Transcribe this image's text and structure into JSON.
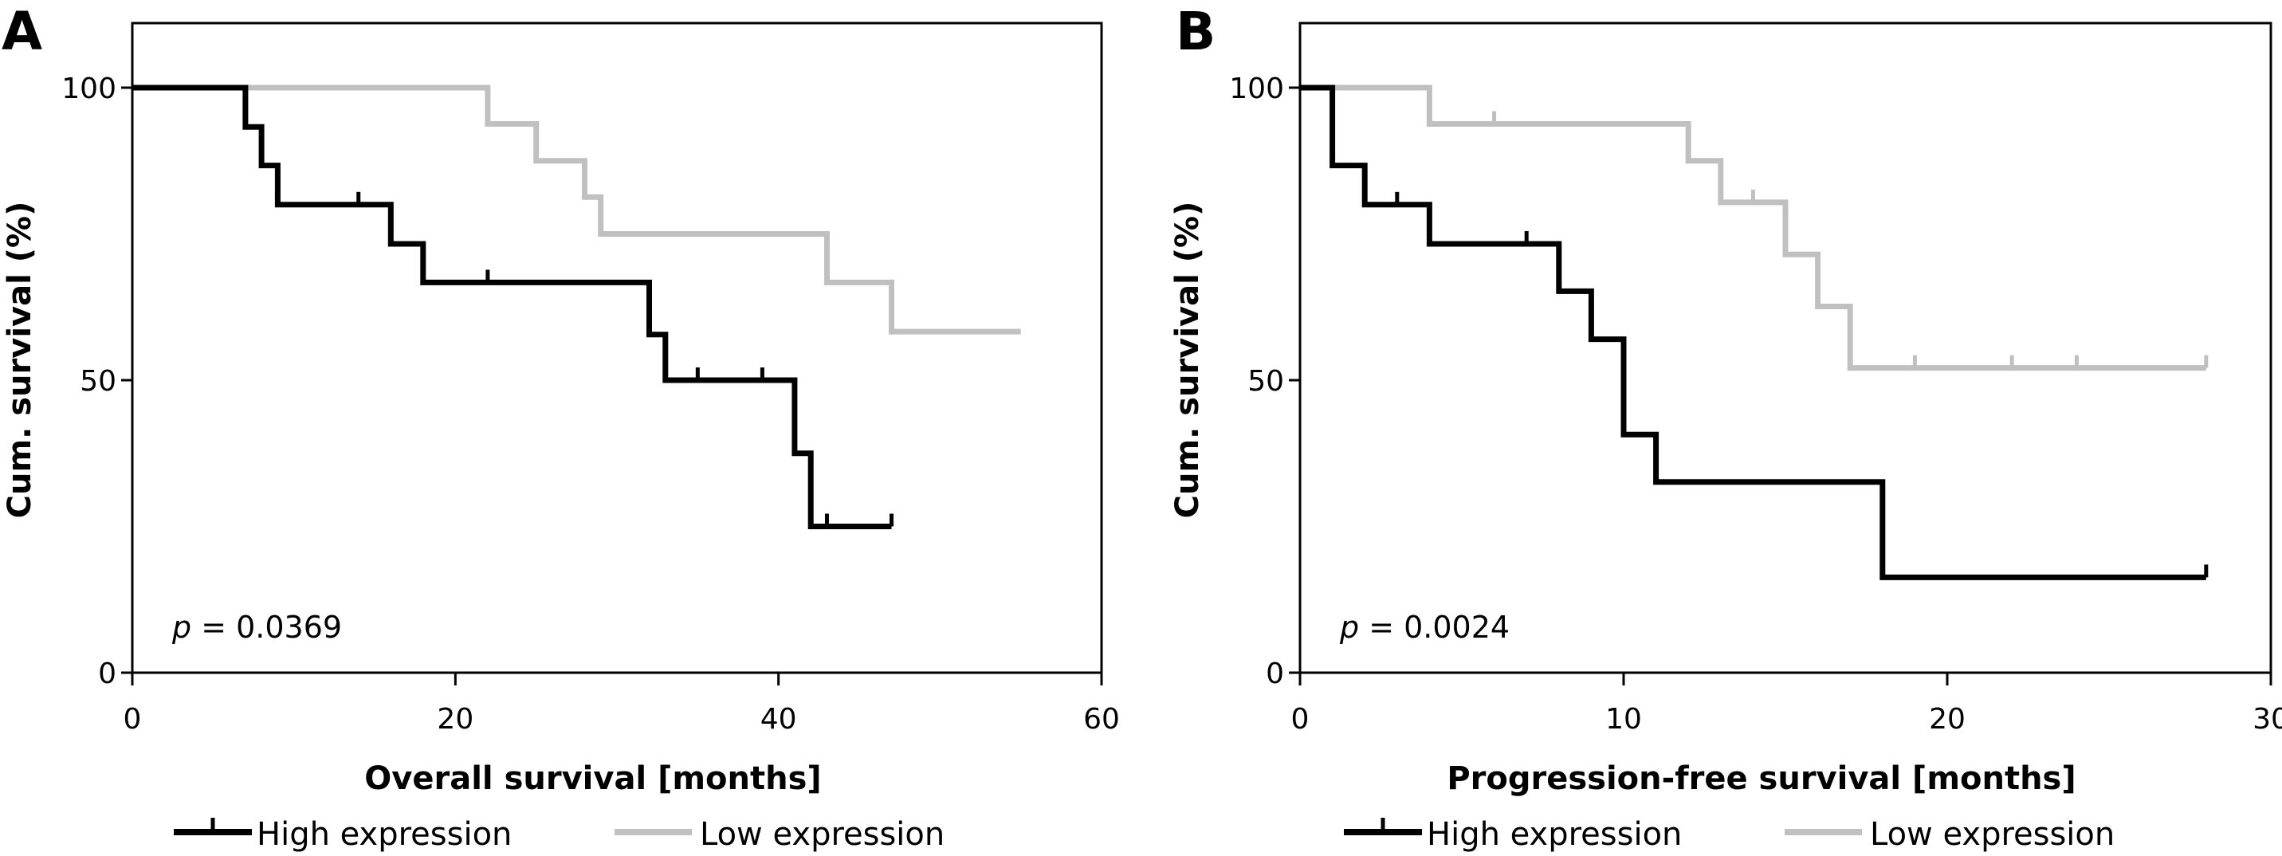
{
  "chart_data": [
    {
      "type": "line",
      "subtype": "kaplan-meier step",
      "panel_label": "A",
      "title": "",
      "xlabel": "Overall survival [months]",
      "ylabel": "Cum. survival (%)",
      "xlim": [
        0,
        60
      ],
      "ylim": [
        0,
        111
      ],
      "xticks": [
        0,
        20,
        40,
        60
      ],
      "yticks": [
        0,
        50,
        100
      ],
      "grid": false,
      "annotation": {
        "prefix": "p",
        "text": " = 0.0369"
      },
      "legend": {
        "placement": "bottom",
        "entries": [
          "High expression",
          "Low expression"
        ]
      },
      "series": [
        {
          "name": "High expression",
          "color": "#000000",
          "steps": [
            [
              0,
              100
            ],
            [
              7,
              93.3
            ],
            [
              8,
              86.7
            ],
            [
              9,
              80.0
            ],
            [
              16,
              73.3
            ],
            [
              18,
              66.7
            ],
            [
              32,
              57.8
            ],
            [
              33,
              50.0
            ],
            [
              41,
              37.5
            ],
            [
              42,
              25.0
            ]
          ],
          "end_x": 47,
          "censored": [
            [
              14,
              80.0
            ],
            [
              22,
              66.7
            ],
            [
              35,
              50.0
            ],
            [
              39,
              50.0
            ],
            [
              43,
              25.0
            ],
            [
              47,
              25.0
            ]
          ]
        },
        {
          "name": "Low expression",
          "color": "#c0c0c0",
          "steps": [
            [
              0,
              100
            ],
            [
              22,
              93.8
            ],
            [
              25,
              87.5
            ],
            [
              28,
              81.3
            ],
            [
              29,
              75.0
            ],
            [
              43,
              66.7
            ],
            [
              47,
              58.3
            ]
          ],
          "end_x": 55,
          "censored": []
        }
      ]
    },
    {
      "type": "line",
      "subtype": "kaplan-meier step",
      "panel_label": "B",
      "title": "",
      "xlabel": "Progression-free survival [months]",
      "ylabel": "Cum. survival (%)",
      "xlim": [
        0,
        30
      ],
      "ylim": [
        0,
        111
      ],
      "xticks": [
        0,
        10,
        20,
        30
      ],
      "yticks": [
        0,
        50,
        100
      ],
      "grid": false,
      "annotation": {
        "prefix": "p",
        "text": " = 0.0024"
      },
      "legend": {
        "placement": "bottom",
        "entries": [
          "High expression",
          "Low expression"
        ]
      },
      "series": [
        {
          "name": "High expression",
          "color": "#000000",
          "steps": [
            [
              0,
              100
            ],
            [
              1,
              86.7
            ],
            [
              2,
              80.0
            ],
            [
              4,
              73.3
            ],
            [
              8,
              65.2
            ],
            [
              9,
              57.0
            ],
            [
              10,
              40.7
            ],
            [
              11,
              32.6
            ],
            [
              18,
              16.3
            ]
          ],
          "end_x": 28,
          "censored": [
            [
              3,
              80.0
            ],
            [
              7,
              73.3
            ],
            [
              28,
              16.3
            ]
          ]
        },
        {
          "name": "Low expression",
          "color": "#c0c0c0",
          "steps": [
            [
              0,
              100
            ],
            [
              4,
              93.8
            ],
            [
              12,
              87.5
            ],
            [
              13,
              80.4
            ],
            [
              15,
              71.5
            ],
            [
              16,
              62.6
            ],
            [
              17,
              52.1
            ]
          ],
          "end_x": 28,
          "censored": [
            [
              6,
              93.8
            ],
            [
              14,
              80.4
            ],
            [
              19,
              52.1
            ],
            [
              22,
              52.1
            ],
            [
              24,
              52.1
            ],
            [
              28,
              52.1
            ]
          ]
        }
      ]
    }
  ]
}
